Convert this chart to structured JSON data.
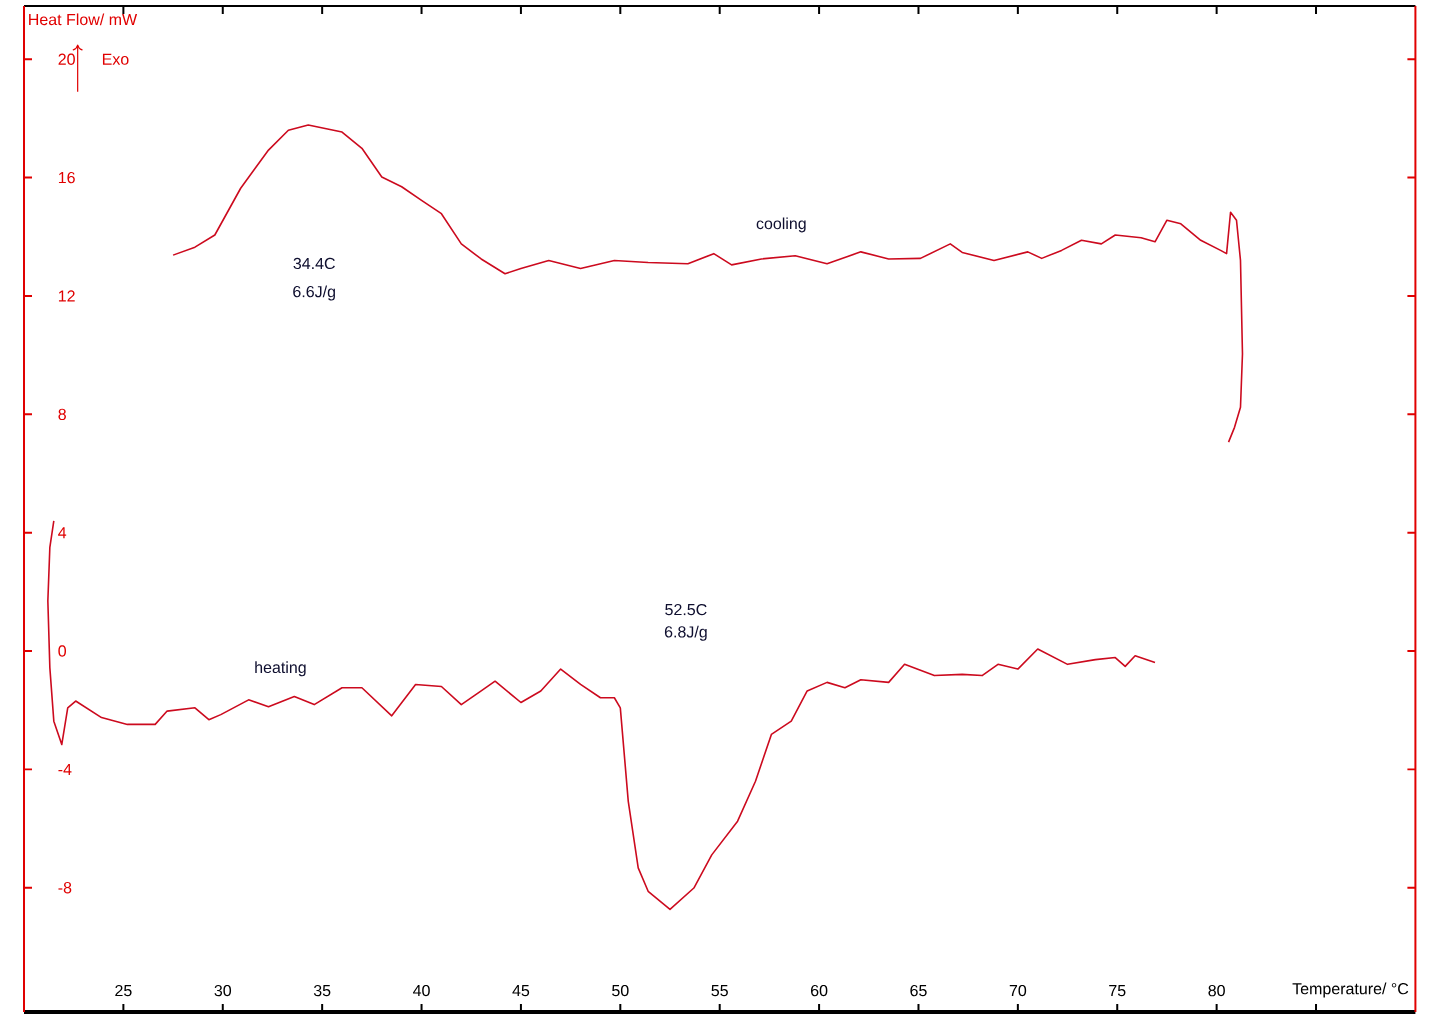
{
  "chart_data": {
    "type": "line",
    "xlabel": "Temperature/ °C",
    "ylabel": "Heat Flow/ mW",
    "annotations": [
      "34.4C",
      "6.6J/g",
      "52.5C",
      "6.8J/g",
      "Exo"
    ],
    "xlim": [
      20,
      90
    ],
    "ylim": [
      -12.2,
      21.8
    ],
    "xticks": [
      25,
      30,
      35,
      40,
      45,
      50,
      55,
      60,
      65,
      70,
      75,
      80,
      {
        "value": 85,
        "label": null
      }
    ],
    "yticks": [
      -8,
      -4,
      0,
      4,
      8,
      12,
      16,
      20
    ],
    "series": [
      {
        "name": "cooling",
        "color": "#cc0a1e",
        "x": [
          27.5,
          28.6,
          29.6,
          30.9,
          32.3,
          33.3,
          34.3,
          36.0,
          37.0,
          38.0,
          39.0,
          40.0,
          41.0,
          42.0,
          43.0,
          44.2,
          45.0,
          46.4,
          48.0,
          49.7,
          51.4,
          53.4,
          54.7,
          55.6,
          57.1,
          58.8,
          60.4,
          62.1,
          63.5,
          65.1,
          66.6,
          67.2,
          68.8,
          70.5,
          71.2,
          72.2,
          73.2,
          74.2,
          74.9,
          76.2,
          76.9,
          77.5,
          78.2,
          79.2,
          80.2,
          80.5,
          80.7,
          81.0,
          81.2,
          81.3,
          81.2,
          80.9,
          80.6
        ],
        "values": [
          13.38,
          13.65,
          14.06,
          15.64,
          16.93,
          17.6,
          17.78,
          17.54,
          16.99,
          16.02,
          15.69,
          15.23,
          14.78,
          13.76,
          13.25,
          12.75,
          12.93,
          13.2,
          12.93,
          13.2,
          13.13,
          13.09,
          13.43,
          13.05,
          13.25,
          13.36,
          13.09,
          13.49,
          13.25,
          13.27,
          13.76,
          13.47,
          13.2,
          13.49,
          13.27,
          13.54,
          13.88,
          13.76,
          14.06,
          13.97,
          13.83,
          14.56,
          14.44,
          13.88,
          13.54,
          13.43,
          14.83,
          14.56,
          13.2,
          10.04,
          8.24,
          7.56,
          7.06
        ]
      },
      {
        "name": "heating",
        "color": "#cc0a1e",
        "x": [
          21.5,
          21.3,
          21.2,
          21.3,
          21.5,
          21.9,
          22.2,
          22.6,
          23.9,
          25.2,
          26.6,
          27.2,
          28.6,
          29.3,
          29.9,
          31.3,
          32.3,
          33.6,
          34.6,
          36.0,
          37.0,
          38.5,
          39.7,
          41.0,
          42.0,
          43.0,
          43.7,
          45.0,
          46.0,
          47.0,
          48.0,
          49.0,
          49.7,
          50.0,
          50.4,
          50.9,
          51.4,
          52.5,
          53.7,
          54.6,
          55.9,
          56.8,
          57.6,
          58.6,
          59.4,
          60.4,
          61.3,
          62.1,
          63.5,
          64.3,
          65.8,
          67.2,
          68.2,
          69.0,
          70.0,
          71.0,
          72.5,
          73.9,
          74.9,
          75.4,
          75.9,
          76.9
        ],
        "values": [
          4.4,
          3.5,
          1.69,
          -0.56,
          -2.37,
          -3.16,
          -1.92,
          -1.69,
          -2.25,
          -2.48,
          -2.48,
          -2.03,
          -1.92,
          -2.32,
          -2.15,
          -1.65,
          -1.88,
          -1.54,
          -1.81,
          -1.24,
          -1.24,
          -2.19,
          -1.13,
          -1.2,
          -1.81,
          -1.35,
          -1.02,
          -1.74,
          -1.35,
          -0.61,
          -1.13,
          -1.58,
          -1.58,
          -1.92,
          -5.08,
          -7.33,
          -8.12,
          -8.73,
          -8.01,
          -6.89,
          -5.75,
          -4.4,
          -2.82,
          -2.37,
          -1.35,
          -1.06,
          -1.24,
          -0.97,
          -1.06,
          -0.45,
          -0.83,
          -0.79,
          -0.83,
          -0.45,
          -0.61,
          0.07,
          -0.45,
          -0.29,
          -0.22,
          -0.52,
          -0.16,
          -0.39
        ]
      }
    ]
  }
}
